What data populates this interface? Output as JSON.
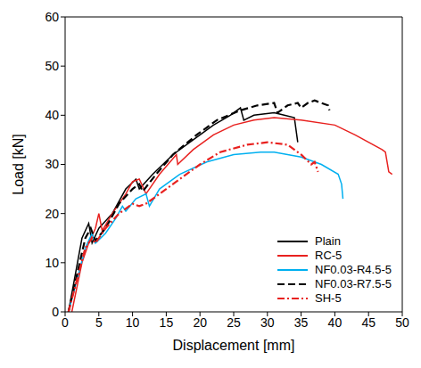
{
  "chart_data": {
    "type": "line",
    "x_label": "Displacement [mm]",
    "y_label": "Load [kN]",
    "xlim": [
      0,
      50
    ],
    "xticks": [
      0,
      5,
      10,
      15,
      20,
      25,
      30,
      35,
      40,
      45,
      50
    ],
    "ylim": [
      0,
      60
    ],
    "yticks": [
      0,
      10,
      20,
      30,
      40,
      50,
      60
    ],
    "grid": false,
    "legend": "lower right",
    "series": [
      {
        "name": "Plain",
        "color": "#000000",
        "line_style": "solid",
        "x": [
          0.5,
          2.5,
          3.5,
          4,
          5,
          7,
          9,
          10.5,
          11,
          13,
          16,
          19,
          22,
          24.5,
          26,
          26.5,
          28,
          31,
          32.5,
          34,
          34.5
        ],
        "values": [
          0,
          15,
          18,
          14,
          17,
          20,
          25,
          27,
          25,
          28,
          32,
          35,
          38,
          40,
          41.5,
          39,
          40,
          40.5,
          40,
          39.5,
          34.5
        ]
      },
      {
        "name": "RC-5",
        "color": "#e8211f",
        "line_style": "solid",
        "x": [
          1,
          2.5,
          3.5,
          4.5,
          5,
          5.5,
          7,
          9,
          10,
          11,
          12,
          14,
          16.5,
          16.7,
          19,
          22,
          25,
          28,
          31,
          35,
          40,
          43,
          47,
          47.5,
          48,
          48.5
        ],
        "values": [
          0,
          10,
          14,
          17,
          20,
          16.5,
          20,
          24,
          26.5,
          27,
          24,
          28,
          32,
          30,
          33,
          36,
          38,
          39,
          39.5,
          39,
          38,
          36,
          33,
          32.5,
          28.5,
          28
        ]
      },
      {
        "name": "NF0.03-R4.5-5",
        "color": "#00b0f0",
        "line_style": "solid",
        "x": [
          0.5,
          3,
          4,
          4.5,
          6,
          7.5,
          8.5,
          9,
          10.5,
          12,
          12.5,
          14,
          17,
          21,
          25,
          29,
          31,
          35,
          38,
          40.5,
          41,
          41.2
        ],
        "values": [
          0,
          13,
          16,
          14,
          16,
          19,
          21.5,
          20.5,
          23,
          24,
          21.5,
          25,
          28,
          30.5,
          32,
          32.5,
          32.5,
          31.5,
          30,
          28,
          26,
          23
        ]
      },
      {
        "name": "NF0.03-R7.5-5",
        "color": "#000000",
        "line_style": "dashed",
        "x": [
          0.5,
          3,
          3.8,
          4.5,
          6,
          8,
          10,
          11,
          11.5,
          13.5,
          16,
          19.5,
          22.5,
          26,
          28.5,
          31,
          31.5,
          33,
          34.5,
          35,
          36,
          37,
          38,
          39,
          39.2
        ],
        "values": [
          0,
          15,
          17,
          14.5,
          17,
          22,
          25,
          26,
          24.5,
          28,
          32,
          36,
          39,
          41,
          42,
          42.5,
          40.5,
          42,
          42.5,
          41.5,
          42.5,
          43,
          42.5,
          42,
          41
        ]
      },
      {
        "name": "SH-5",
        "color": "#e8211f",
        "line_style": "dashdot",
        "x": [
          0.5,
          3,
          4,
          4.5,
          6,
          8,
          10,
          11,
          12,
          14,
          17,
          20,
          23,
          27,
          30,
          33,
          35,
          36.5,
          37,
          37.5
        ],
        "values": [
          0,
          13,
          15,
          14,
          17,
          20,
          22,
          21.5,
          22,
          24,
          27,
          30,
          32.5,
          34,
          34.5,
          34,
          32,
          30,
          30.5,
          28.5
        ]
      }
    ]
  }
}
